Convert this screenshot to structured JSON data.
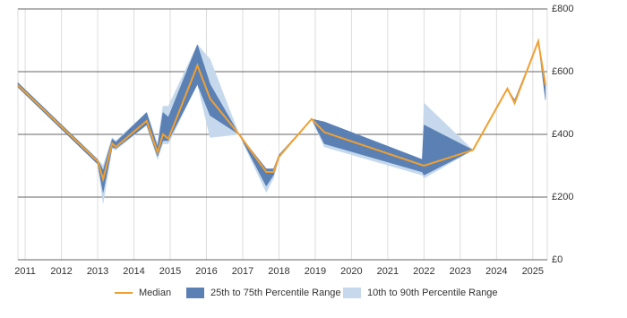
{
  "chart_data": {
    "type": "band-line",
    "x": [
      2010.8,
      2013.0,
      2013.15,
      2013.4,
      2013.5,
      2014.35,
      2014.65,
      2014.8,
      2014.95,
      2015.75,
      2016.1,
      2016.9,
      2017.65,
      2017.85,
      2018.0,
      2018.9,
      2019.25,
      2021.95,
      2022.0,
      2023.35,
      2024.3,
      2024.5,
      2025.15,
      2025.35
    ],
    "bands": [
      {
        "name": "10th to 90th Percentile Range",
        "color": "#c6d9ec",
        "upper": [
          565,
          320,
          300,
          390,
          380,
          470,
          370,
          490,
          490,
          686,
          640,
          400,
          290,
          290,
          335,
          449,
          440,
          320,
          500,
          350,
          546,
          510,
          697,
          570
        ],
        "lower": [
          550,
          305,
          180,
          355,
          350,
          430,
          320,
          370,
          370,
          560,
          390,
          400,
          215,
          260,
          325,
          449,
          360,
          270,
          260,
          350,
          546,
          495,
          697,
          510
        ]
      },
      {
        "name": "25th to 75th Percentile Range",
        "color": "#5b80b4",
        "upper": [
          565,
          320,
          285,
          385,
          375,
          470,
          360,
          470,
          455,
          686,
          560,
          400,
          290,
          290,
          335,
          449,
          440,
          320,
          430,
          350,
          546,
          510,
          697,
          570
        ],
        "lower": [
          550,
          305,
          215,
          360,
          355,
          430,
          330,
          380,
          380,
          560,
          460,
          400,
          235,
          270,
          325,
          449,
          370,
          280,
          270,
          350,
          546,
          495,
          697,
          510
        ]
      }
    ],
    "series": [
      {
        "name": "Median",
        "color": "#f0a030",
        "values": [
          557,
          314,
          257,
          371,
          360,
          443,
          343,
          400,
          386,
          620,
          514,
          400,
          280,
          280,
          329,
          449,
          407,
          302,
          300,
          350,
          546,
          500,
          697,
          557
        ]
      }
    ],
    "xlim": [
      2010.8,
      2025.4
    ],
    "xticks": [
      2011,
      2012,
      2013,
      2014,
      2015,
      2016,
      2017,
      2018,
      2019,
      2020,
      2021,
      2022,
      2023,
      2024,
      2025
    ],
    "ylim": [
      0,
      800
    ],
    "yticks": [
      {
        "value": 0,
        "label": "£0"
      },
      {
        "value": 200,
        "label": "£200"
      },
      {
        "value": 400,
        "label": "£400"
      },
      {
        "value": 600,
        "label": "£600"
      },
      {
        "value": 800,
        "label": "£800"
      }
    ],
    "grid": true
  }
}
